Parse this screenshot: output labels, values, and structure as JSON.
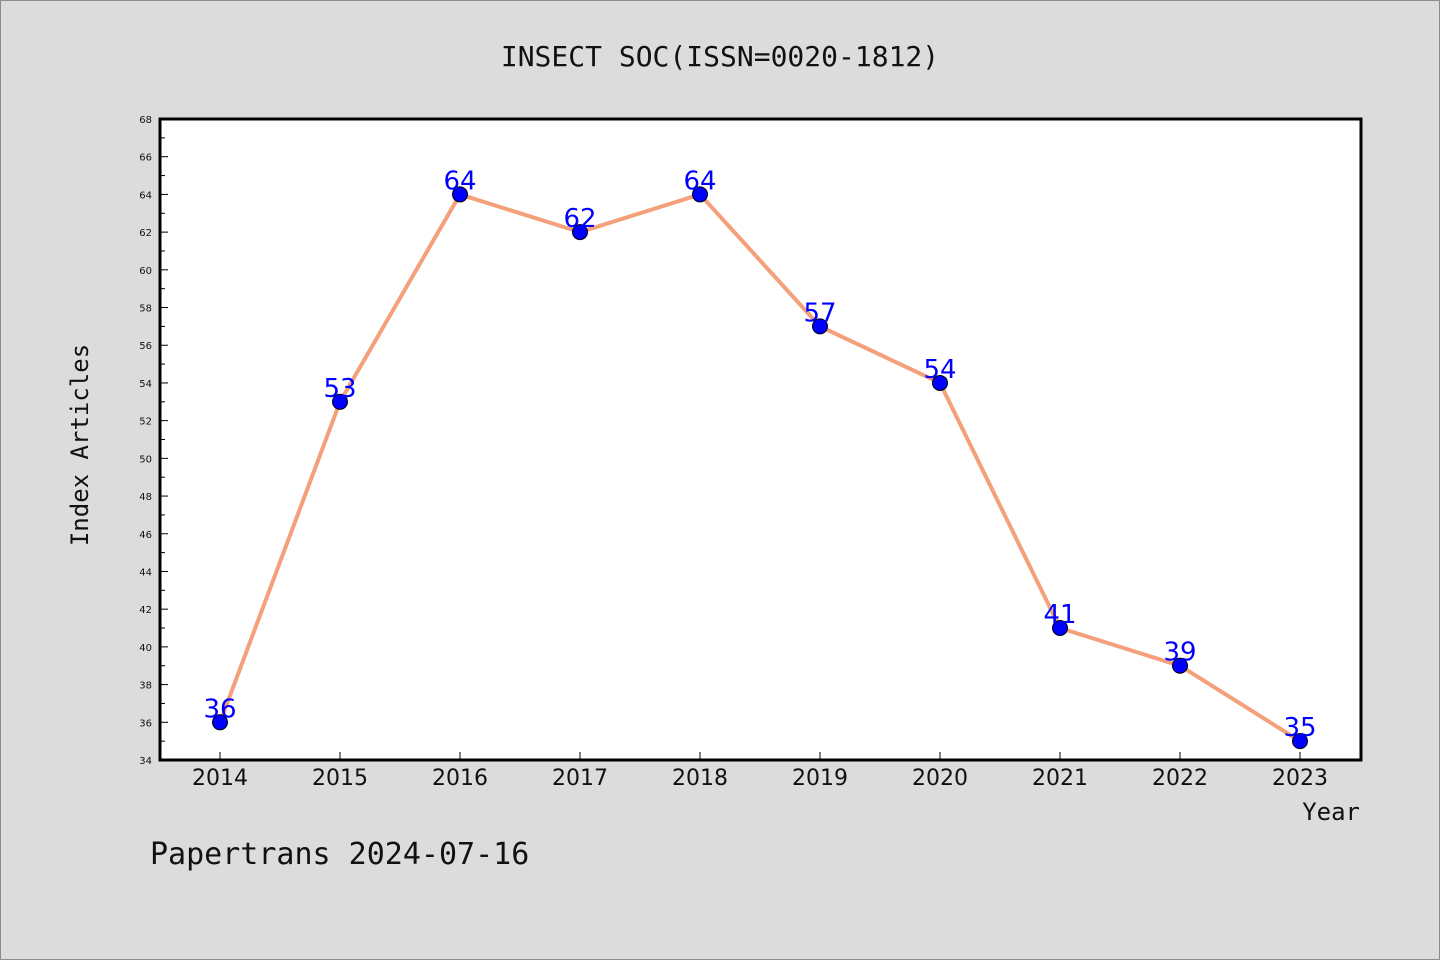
{
  "chart_data": {
    "type": "line",
    "title": "INSECT SOC(ISSN=0020-1812)",
    "xlabel": "Year",
    "ylabel": "Index Articles",
    "categories": [
      "2014",
      "2015",
      "2016",
      "2017",
      "2018",
      "2019",
      "2020",
      "2021",
      "2022",
      "2023"
    ],
    "series": [
      {
        "values": [
          36,
          53,
          64,
          62,
          64,
          57,
          54,
          41,
          39,
          35
        ]
      }
    ],
    "ylim": [
      34,
      68
    ],
    "ytick_step": 2,
    "grid": false,
    "line_color": "#f4a07a",
    "marker_color": "#0000ff",
    "label_color": "#0000ff"
  },
  "footer": "Papertrans 2024-07-16"
}
